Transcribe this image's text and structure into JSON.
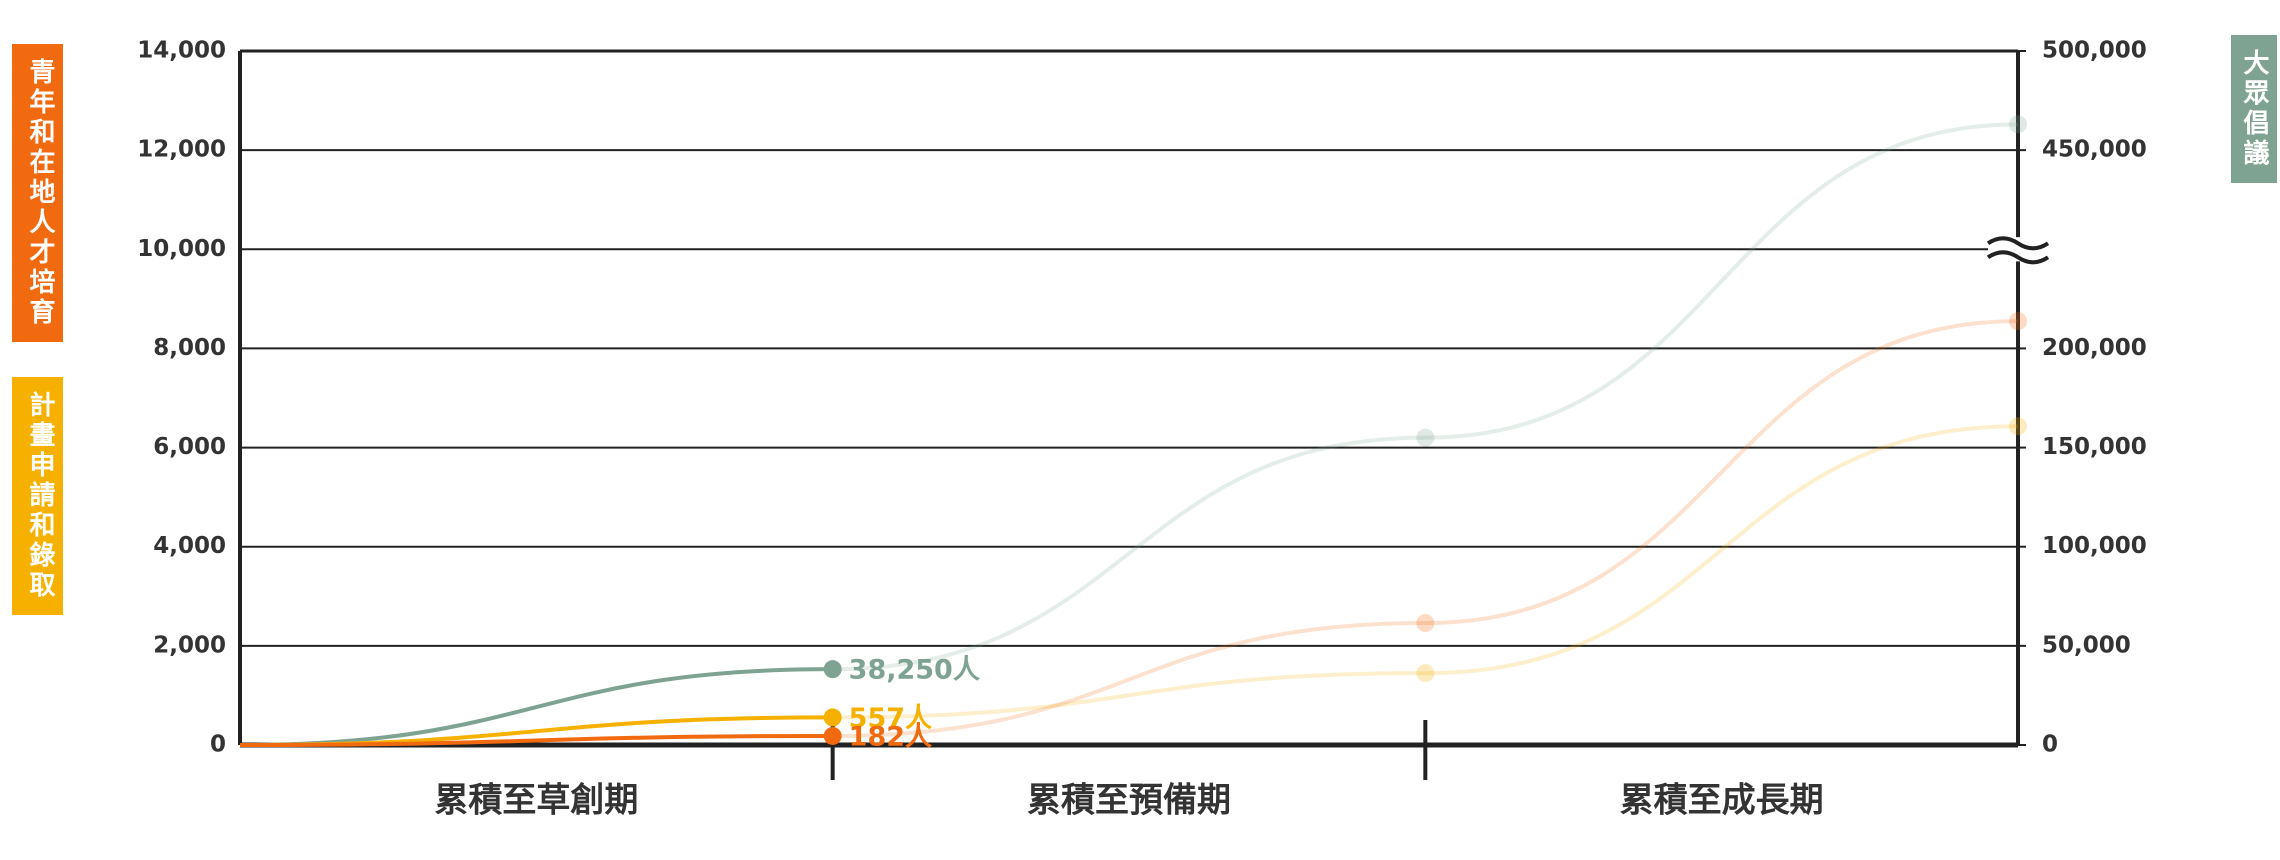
{
  "chart_data": {
    "type": "line",
    "categories": [
      null,
      "累積至草創期",
      "累積至預備期",
      "累積至成長期"
    ],
    "series": [
      {
        "name": "青年和在地人才培育",
        "color": "#f26a0f",
        "values": [
          0,
          182,
          2460,
          8550
        ],
        "value_labels": [
          null,
          "182人",
          null,
          null
        ]
      },
      {
        "name": "計畫申請和錄取",
        "color": "#f6b100",
        "values": [
          0,
          557,
          1450,
          6430
        ],
        "value_labels": [
          null,
          "557人",
          null,
          null
        ]
      },
      {
        "name": "大眾倡議",
        "color": "#7fa393",
        "axis": "y2",
        "values": [
          0,
          38250,
          155000,
          463000
        ],
        "value_labels": [
          null,
          "38,250人",
          null,
          null
        ]
      }
    ],
    "ylim": [
      0,
      14000
    ],
    "yticks": [
      0,
      {
        "value": 2000,
        "label": "2,000"
      },
      {
        "value": 4000,
        "label": "4,000"
      },
      {
        "value": 6000,
        "label": "6,000"
      },
      {
        "value": 8000,
        "label": "8,000"
      },
      {
        "value": 10000,
        "label": "10,000"
      },
      {
        "value": 12000,
        "label": "12,000"
      },
      {
        "value": 14000,
        "label": "14,000"
      }
    ],
    "y2lim": [
      0,
      500000
    ],
    "y2_break": [
      200000,
      450000
    ],
    "y2ticks": [
      0,
      {
        "value": 50000,
        "label": "50,000"
      },
      {
        "value": 100000,
        "label": "100,000"
      },
      {
        "value": 150000,
        "label": "150,000"
      },
      {
        "value": 200000,
        "label": "200,000"
      },
      {
        "value": 450000,
        "label": "450,000"
      },
      {
        "value": 500000,
        "label": "500,000"
      }
    ],
    "grid": true,
    "active_points": 2
  }
}
